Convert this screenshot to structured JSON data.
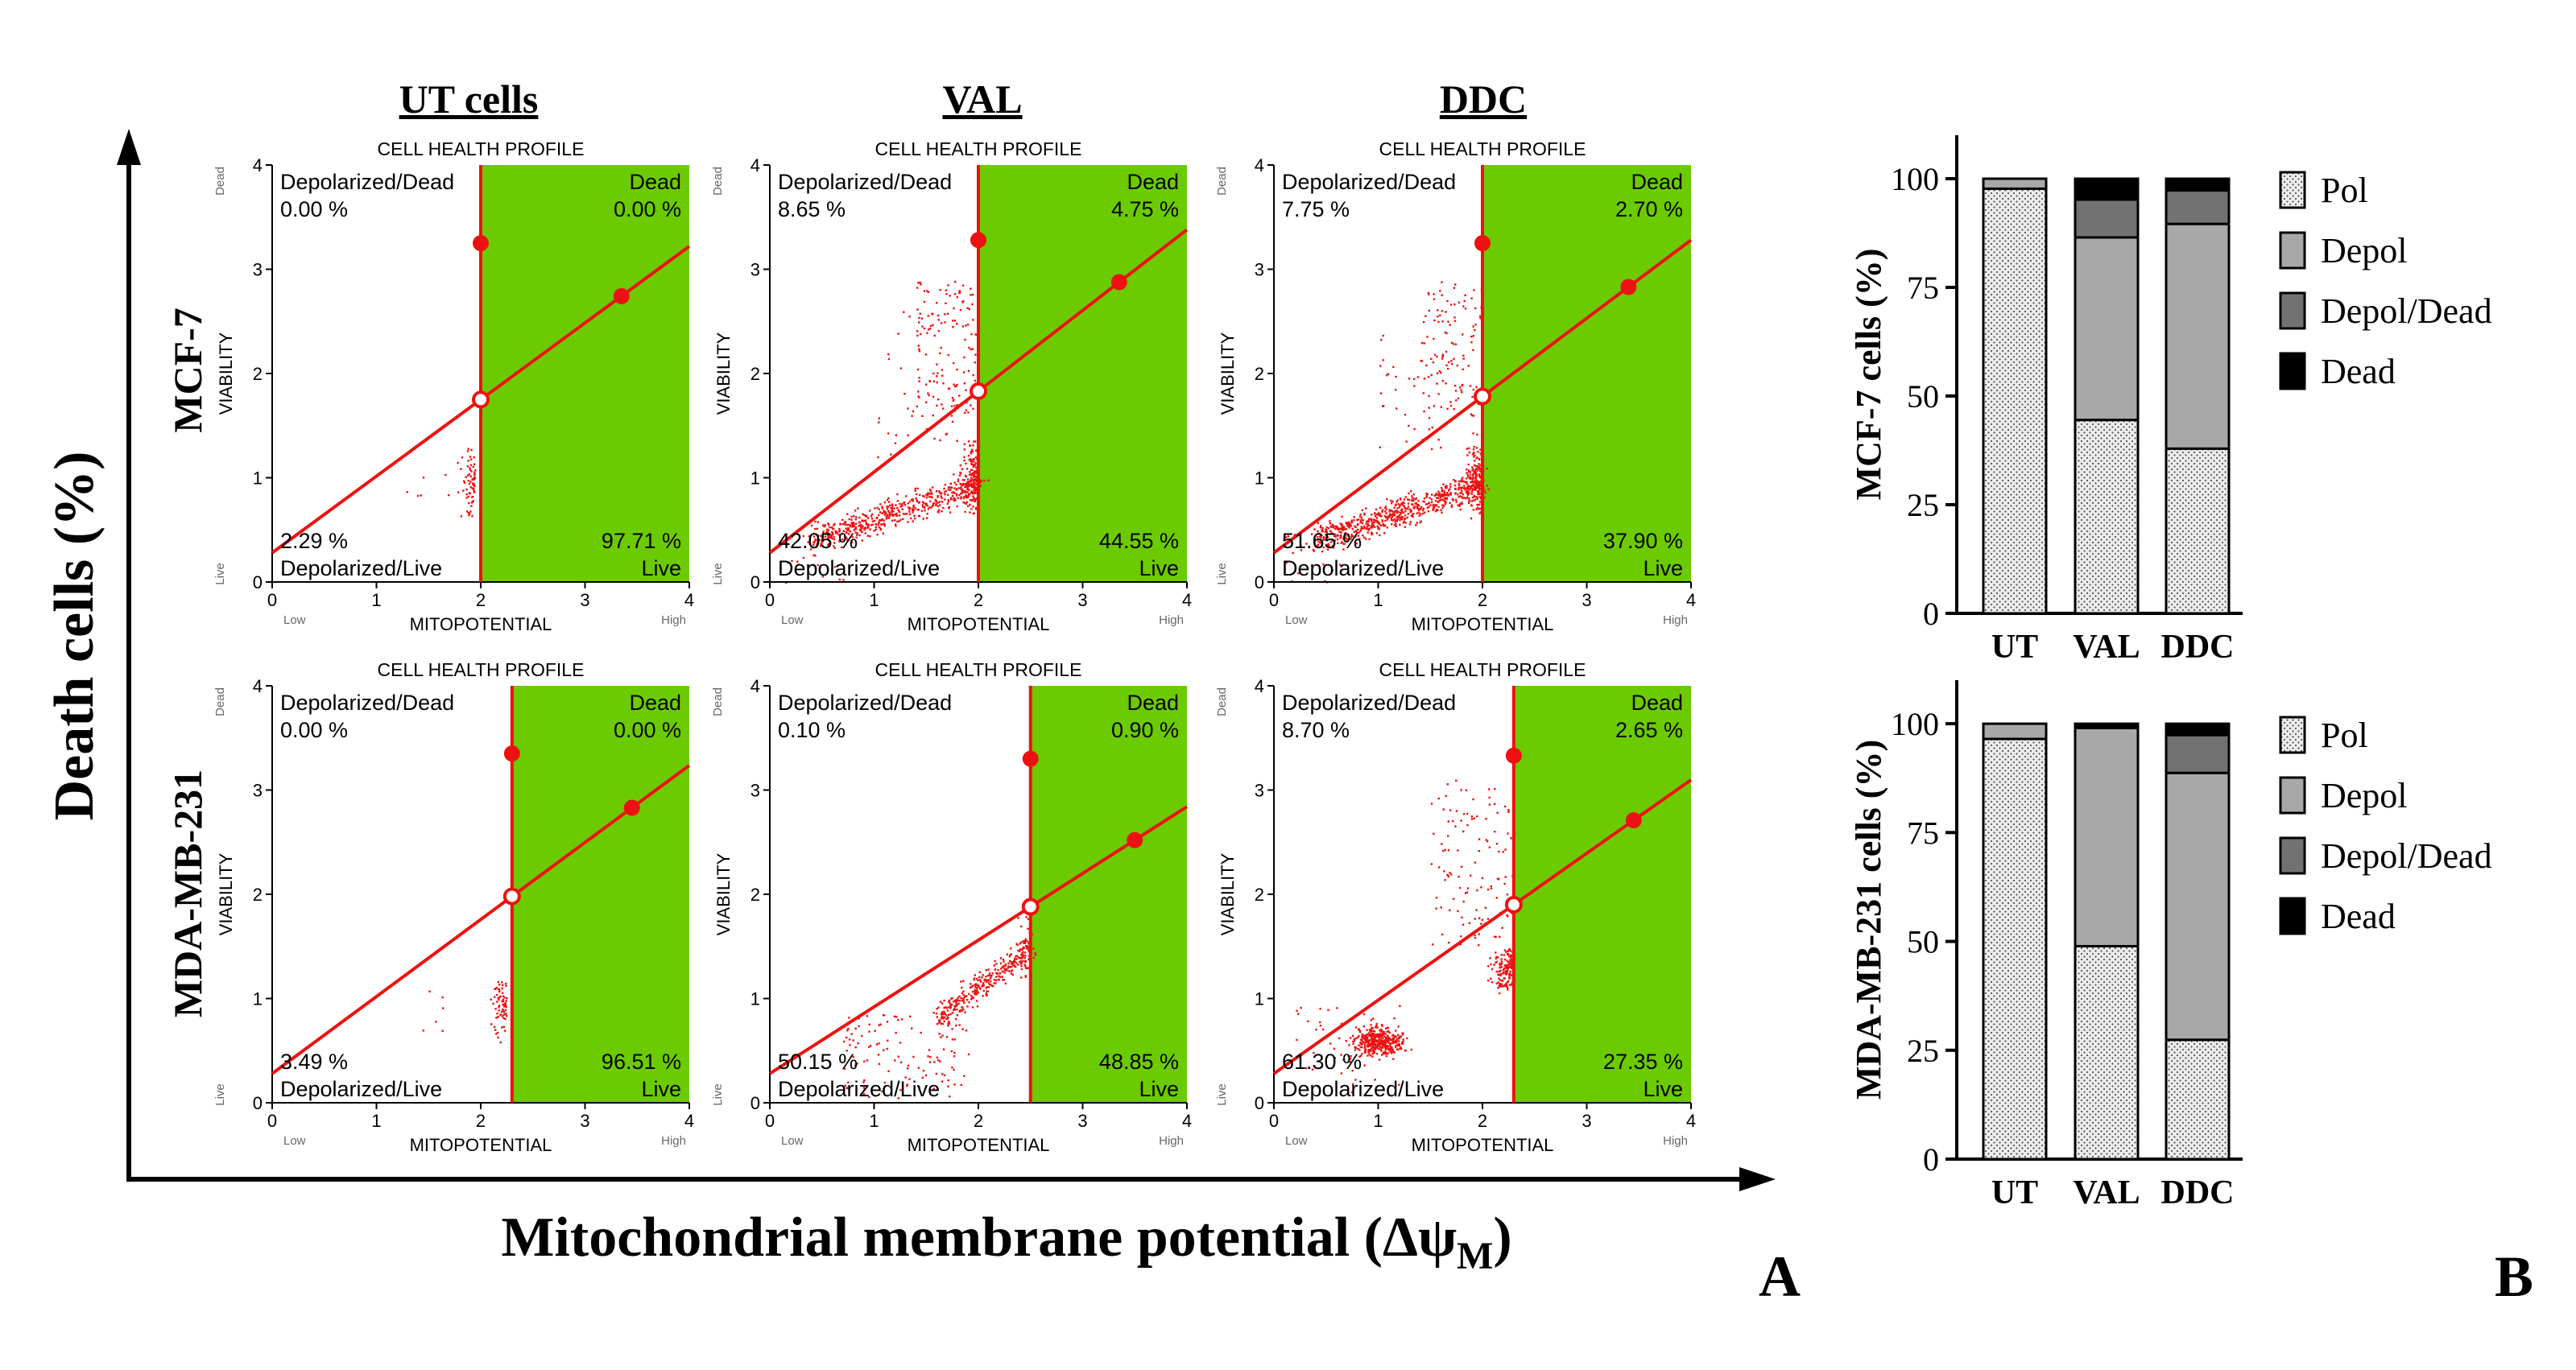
{
  "figure": {
    "col_titles": [
      "UT cells",
      "VAL",
      "DDC"
    ],
    "row_labels": [
      "MCF-7",
      "MDA-MB-231"
    ],
    "y_axis_label": "Death cells (%)",
    "x_axis_label": "Mitochondrial membrane potential (Δψ",
    "x_axis_label_sub": "M",
    "x_axis_label_end": ")",
    "panel_letter_a": "A",
    "panel_letter_b": "B"
  },
  "colors": {
    "green": "#6bcb00",
    "red": "#ee1111",
    "axis": "#000000",
    "pol_fill": "#ececec",
    "depol": "#a8a8a8",
    "depol_dead": "#727272",
    "dead": "#000000"
  },
  "chart_data": [
    {
      "type": "scatter",
      "title": "CELL HEALTH PROFILE",
      "xlabel": "MITOPOTENTIAL",
      "ylabel": "VIABILITY",
      "x_end_labels": [
        "Low",
        "High"
      ],
      "y_end_labels": [
        "Live",
        "Dead"
      ],
      "xlim": [
        0,
        4
      ],
      "ylim": [
        0,
        4
      ],
      "ticks": [
        "0",
        "1",
        "2",
        "3",
        "4"
      ],
      "quadrant_labels": {
        "top_left": "Depolarized/Dead",
        "top_right": "Dead",
        "bottom_left": "Depolarized/Live",
        "bottom_right": "Live"
      },
      "panels": [
        {
          "id": "mcf7-ut",
          "row": 0,
          "col": 0,
          "gate_x": 2.0,
          "cross_y": 1.75,
          "line_y0": 0.28,
          "upper_marker_y": 3.25,
          "right_marker_x": 3.35,
          "q_ul": "0.00 %",
          "q_ur": "0.00 %",
          "q_ll": "2.29 %",
          "q_lr": "97.71 %",
          "density": "ut"
        },
        {
          "id": "mcf7-val",
          "row": 0,
          "col": 1,
          "gate_x": 2.0,
          "cross_y": 1.83,
          "line_y0": 0.28,
          "upper_marker_y": 3.28,
          "right_marker_x": 3.35,
          "q_ul": "8.65 %",
          "q_ur": "4.75 %",
          "q_ll": "42.05 %",
          "q_lr": "44.55 %",
          "density": "val"
        },
        {
          "id": "mcf7-ddc",
          "row": 0,
          "col": 2,
          "gate_x": 2.0,
          "cross_y": 1.78,
          "line_y0": 0.28,
          "upper_marker_y": 3.25,
          "right_marker_x": 3.4,
          "q_ul": "7.75 %",
          "q_ur": "2.70 %",
          "q_ll": "51.65 %",
          "q_lr": "37.90 %",
          "density": "ddc"
        },
        {
          "id": "mda-ut",
          "row": 1,
          "col": 0,
          "gate_x": 2.3,
          "cross_y": 1.98,
          "line_y0": 0.28,
          "upper_marker_y": 3.35,
          "right_marker_x": 3.45,
          "q_ul": "0.00 %",
          "q_ur": "0.00 %",
          "q_ll": "3.49 %",
          "q_lr": "96.51 %",
          "density": "ut"
        },
        {
          "id": "mda-val",
          "row": 1,
          "col": 1,
          "gate_x": 2.5,
          "cross_y": 1.88,
          "line_y0": 0.28,
          "upper_marker_y": 3.3,
          "right_marker_x": 3.5,
          "q_ul": "0.10 %",
          "q_ur": "0.90 %",
          "q_ll": "50.15 %",
          "q_lr": "48.85 %",
          "density": "val2"
        },
        {
          "id": "mda-ddc",
          "row": 1,
          "col": 2,
          "gate_x": 2.3,
          "cross_y": 1.9,
          "line_y0": 0.28,
          "upper_marker_y": 3.33,
          "right_marker_x": 3.45,
          "q_ul": "8.70 %",
          "q_ur": "2.65 %",
          "q_ll": "61.30 %",
          "q_lr": "27.35 %",
          "density": "ddc2"
        }
      ]
    },
    {
      "type": "bar",
      "stacked": true,
      "title": "",
      "ylabel": "MCF-7 cells (%)",
      "categories": [
        "UT",
        "VAL",
        "DDC"
      ],
      "ylim": [
        0,
        110
      ],
      "yticks": [
        "0",
        "25",
        "50",
        "75",
        "100"
      ],
      "series": [
        {
          "name": "Pol",
          "values": [
            97.7,
            44.5,
            37.9
          ]
        },
        {
          "name": "Depol",
          "values": [
            2.3,
            42.0,
            51.7
          ]
        },
        {
          "name": "Depol/Dead",
          "values": [
            0.0,
            8.7,
            7.7
          ]
        },
        {
          "name": "Dead",
          "values": [
            0.0,
            4.8,
            2.7
          ]
        }
      ]
    },
    {
      "type": "bar",
      "stacked": true,
      "title": "",
      "ylabel": "MDA-MB-231 cells (%)",
      "categories": [
        "UT",
        "VAL",
        "DDC"
      ],
      "ylim": [
        0,
        110
      ],
      "yticks": [
        "0",
        "25",
        "50",
        "75",
        "100"
      ],
      "series": [
        {
          "name": "Pol",
          "values": [
            96.5,
            48.9,
            27.4
          ]
        },
        {
          "name": "Depol",
          "values": [
            3.5,
            50.1,
            61.3
          ]
        },
        {
          "name": "Depol/Dead",
          "values": [
            0.0,
            0.1,
            8.7
          ]
        },
        {
          "name": "Dead",
          "values": [
            0.0,
            0.9,
            2.6
          ]
        }
      ]
    }
  ]
}
